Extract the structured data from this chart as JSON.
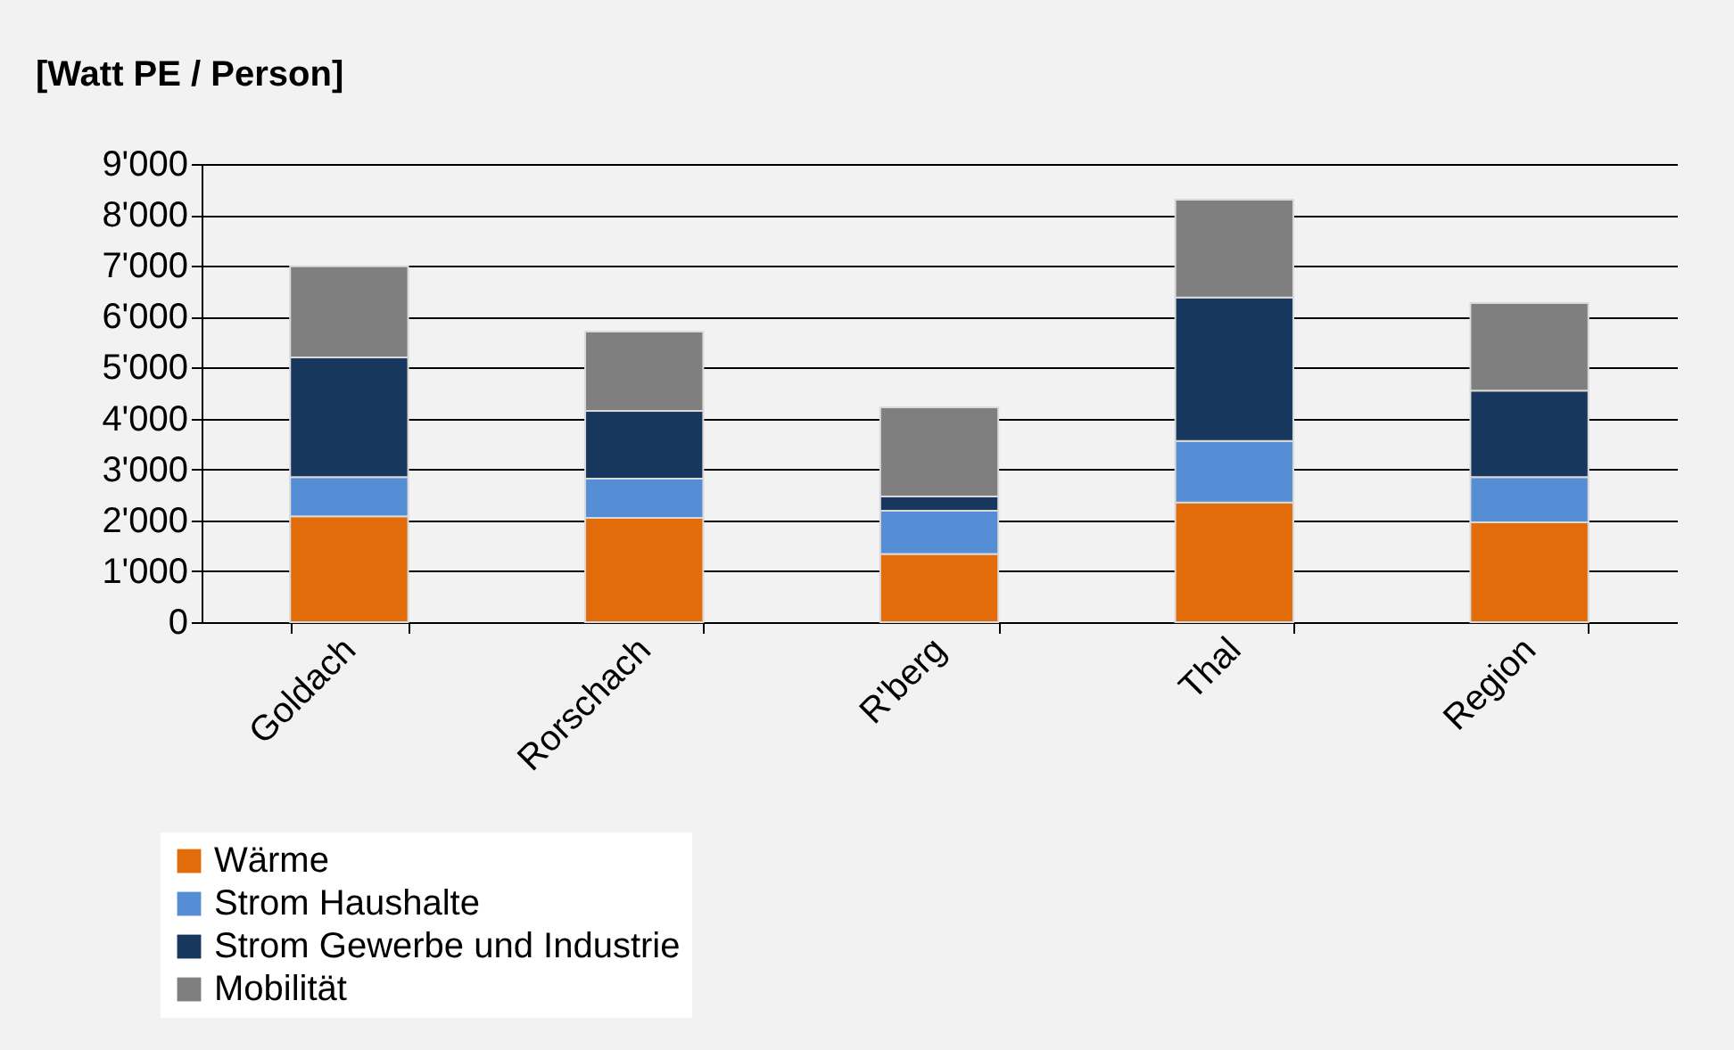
{
  "chart_data": {
    "type": "bar",
    "stacked": true,
    "ylabel": "[Watt PE / Person]",
    "categories": [
      "Goldach",
      "Rorschach",
      "R'berg",
      "Thal",
      "Region"
    ],
    "series": [
      {
        "name": "Wärme",
        "color": "#e36c0a",
        "values": [
          2080,
          2050,
          1340,
          2350,
          1960
        ]
      },
      {
        "name": "Strom Haushalte",
        "color": "#558ed5",
        "values": [
          770,
          770,
          850,
          1210,
          890
        ]
      },
      {
        "name": "Strom Gewerbe und Industrie",
        "color": "#17375e",
        "values": [
          2350,
          1330,
          280,
          2820,
          1700
        ]
      },
      {
        "name": "Mobilität",
        "color": "#7f7f7f",
        "values": [
          1790,
          1560,
          1750,
          1920,
          1720
        ]
      }
    ],
    "ylim": [
      0,
      9000
    ],
    "yticks": [
      0,
      {
        "value": 1000,
        "label": "1'000"
      },
      {
        "value": 2000,
        "label": "2'000"
      },
      {
        "value": 3000,
        "label": "3'000"
      },
      {
        "value": 4000,
        "label": "4'000"
      },
      {
        "value": 5000,
        "label": "5'000"
      },
      {
        "value": 6000,
        "label": "6'000"
      },
      {
        "value": 7000,
        "label": "7'000"
      },
      {
        "value": 8000,
        "label": "8'000"
      },
      {
        "value": 9000,
        "label": "9'000"
      }
    ],
    "grid": "y",
    "legend": "bottom left"
  }
}
